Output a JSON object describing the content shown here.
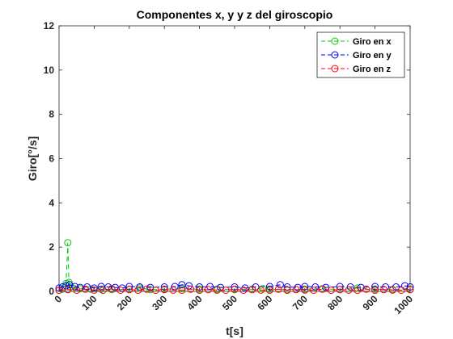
{
  "chart_data": {
    "type": "line",
    "title": "Componentes x, y y z del giroscopio",
    "xlabel": "t[s]",
    "ylabel": "Giro[°/s]",
    "xlim": [
      0,
      1000
    ],
    "ylim": [
      0,
      12
    ],
    "xticks": [
      "0",
      "100",
      "200",
      "300",
      "400",
      "500",
      "600",
      "700",
      "800",
      "900",
      "1000"
    ],
    "yticks": [
      "0",
      "2",
      "4",
      "6",
      "8",
      "10",
      "12"
    ],
    "grid": false,
    "legend_position": "top-right",
    "marker": "circle",
    "series": [
      {
        "name": "Giro en x",
        "color": "#00cc00",
        "line_style": "dashed",
        "x": [
          0,
          10,
          20,
          25,
          28,
          32,
          40,
          60,
          90,
          120,
          150,
          200,
          230,
          260,
          300,
          350,
          400,
          450,
          500,
          550,
          580,
          600,
          650,
          700,
          750,
          800,
          850,
          900,
          950,
          1000
        ],
        "y": [
          0.05,
          0.1,
          0.35,
          2.2,
          0.4,
          0.2,
          0.15,
          0.12,
          0.1,
          0.1,
          0.08,
          0.1,
          0.15,
          0.08,
          0.1,
          0.12,
          0.1,
          0.1,
          0.08,
          0.1,
          0.12,
          0.1,
          0.08,
          0.1,
          0.12,
          0.08,
          0.15,
          0.1,
          0.08,
          0.1
        ]
      },
      {
        "name": "Giro en y",
        "color": "#0000ff",
        "line_style": "dashed",
        "x": [
          0,
          10,
          20,
          30,
          45,
          60,
          80,
          100,
          120,
          140,
          160,
          180,
          200,
          230,
          260,
          300,
          330,
          350,
          370,
          400,
          430,
          460,
          500,
          530,
          560,
          600,
          630,
          650,
          680,
          700,
          730,
          760,
          800,
          830,
          860,
          900,
          930,
          960,
          985,
          1000
        ],
        "y": [
          0.15,
          0.2,
          0.25,
          0.3,
          0.22,
          0.18,
          0.2,
          0.15,
          0.22,
          0.2,
          0.18,
          0.15,
          0.22,
          0.2,
          0.18,
          0.2,
          0.22,
          0.3,
          0.25,
          0.2,
          0.22,
          0.18,
          0.2,
          0.15,
          0.2,
          0.22,
          0.3,
          0.2,
          0.18,
          0.22,
          0.2,
          0.18,
          0.22,
          0.2,
          0.18,
          0.22,
          0.2,
          0.2,
          0.25,
          0.2
        ]
      },
      {
        "name": "Giro en z",
        "color": "#ff0000",
        "line_style": "dashed",
        "x": [
          0,
          25,
          50,
          75,
          100,
          125,
          150,
          175,
          200,
          225,
          250,
          275,
          300,
          325,
          350,
          375,
          400,
          425,
          450,
          475,
          500,
          525,
          550,
          575,
          600,
          625,
          650,
          675,
          700,
          725,
          750,
          775,
          800,
          825,
          850,
          875,
          900,
          925,
          950,
          975,
          1000
        ],
        "y": [
          0.05,
          0.08,
          0.05,
          0.1,
          0.06,
          0.05,
          0.12,
          0.05,
          0.08,
          0.05,
          0.1,
          0.05,
          0.08,
          0.06,
          0.05,
          0.1,
          0.05,
          0.08,
          0.06,
          0.05,
          0.1,
          0.05,
          0.08,
          0.06,
          0.05,
          0.1,
          0.05,
          0.08,
          0.06,
          0.05,
          0.1,
          0.05,
          0.08,
          0.06,
          0.05,
          0.1,
          0.05,
          0.08,
          0.06,
          0.05,
          0.08
        ]
      }
    ]
  }
}
